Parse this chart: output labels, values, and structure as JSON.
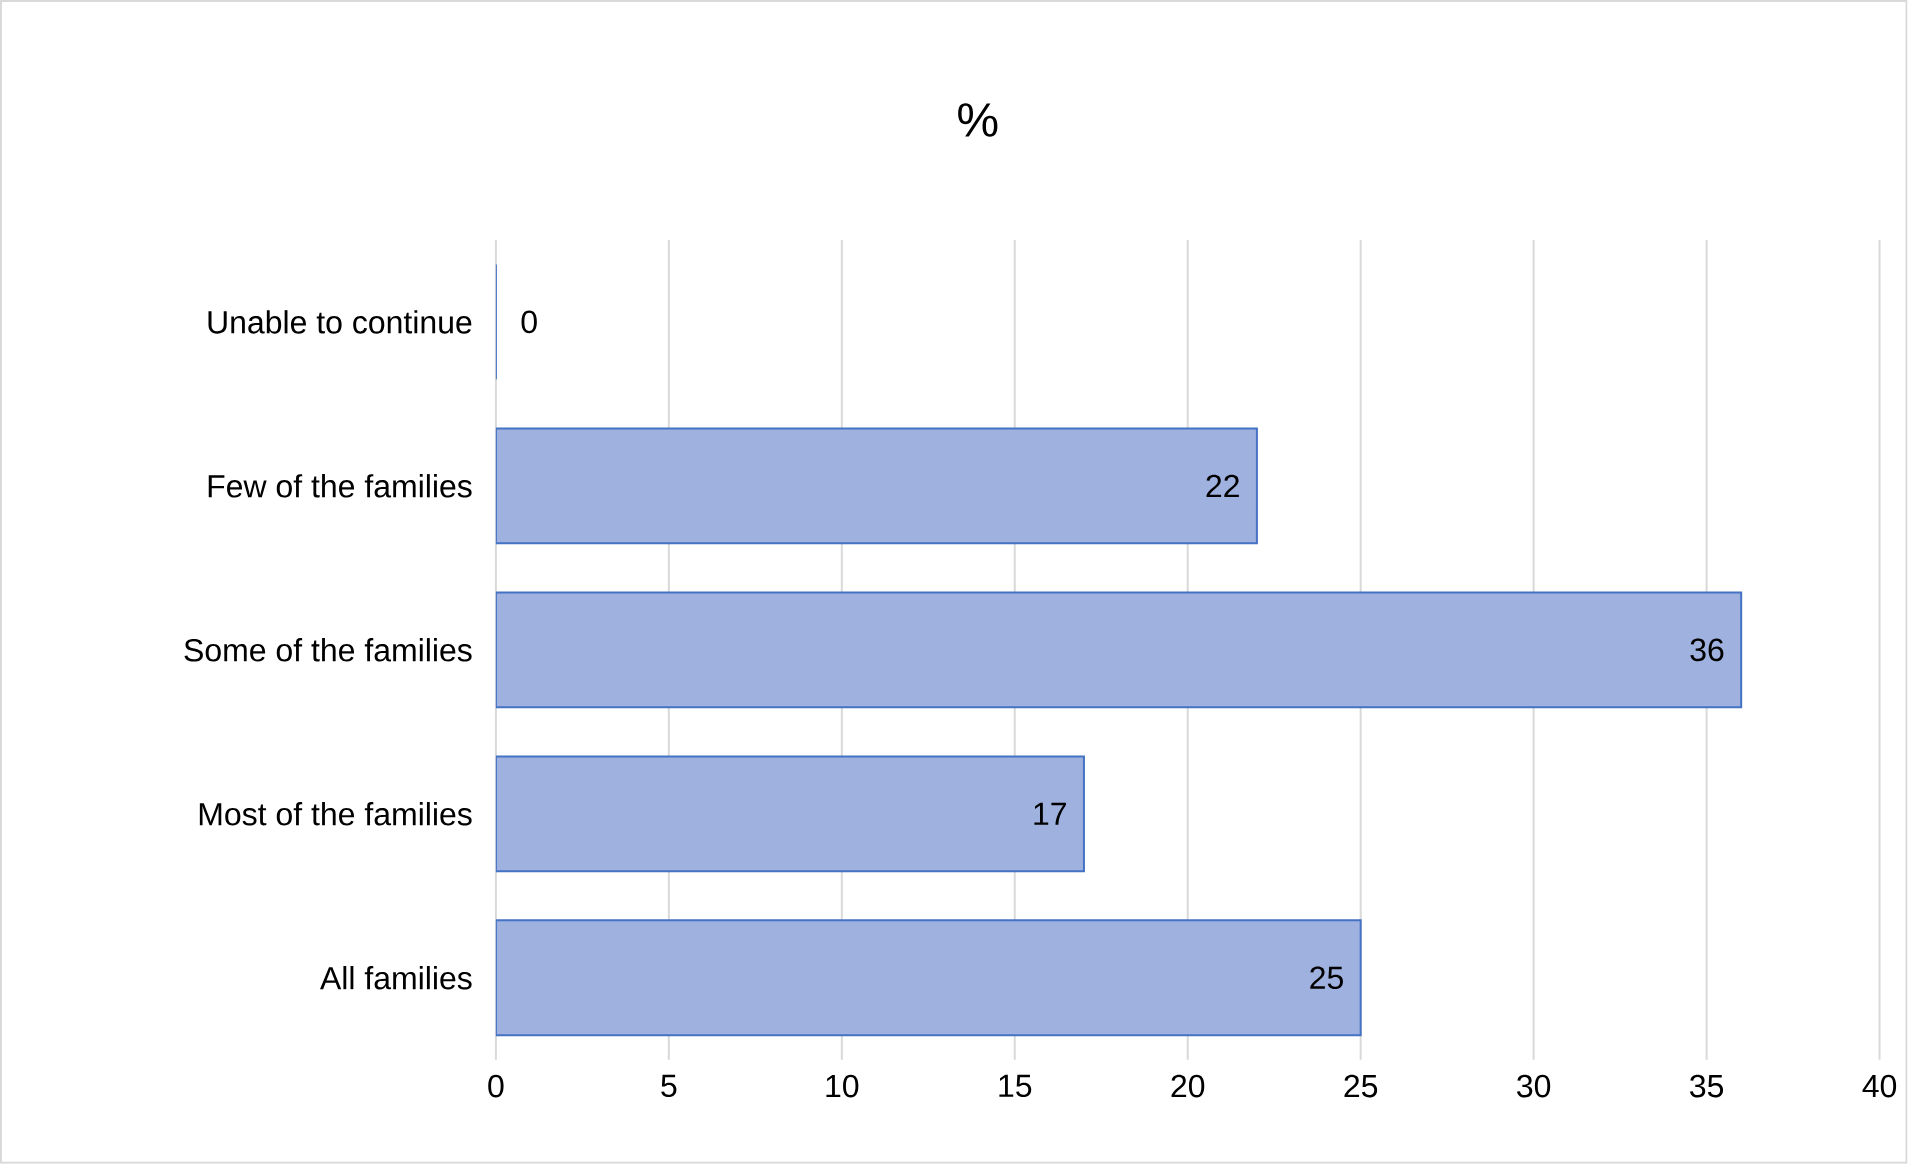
{
  "chart_data": {
    "type": "bar",
    "orientation": "horizontal",
    "title": "%",
    "categories": [
      "Unable to continue",
      "Few of the families",
      "Some of the families",
      "Most of the families",
      "All families"
    ],
    "values": [
      0,
      22,
      36,
      17,
      25
    ],
    "color": "#9fb1df",
    "xlim": [
      0,
      40
    ],
    "xticks": [
      0,
      5,
      10,
      15,
      20,
      25,
      30,
      35,
      40
    ],
    "grid": "x",
    "data_labels": true
  }
}
